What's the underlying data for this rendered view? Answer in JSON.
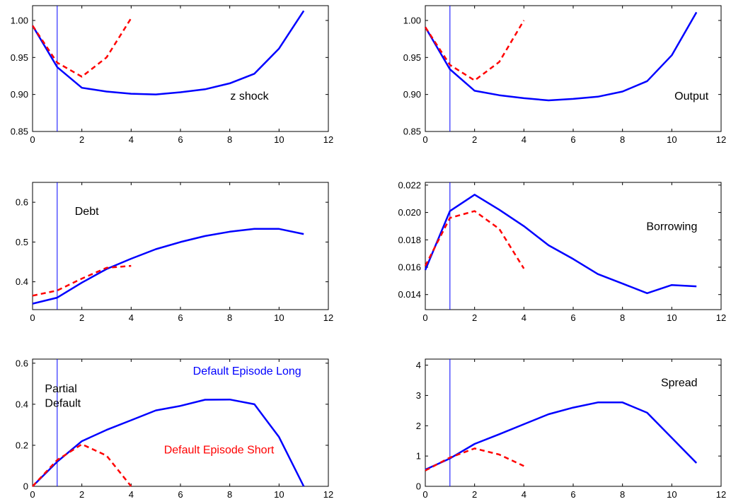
{
  "chart_data": [
    {
      "type": "line",
      "title": "",
      "xlabel": "",
      "ylabel": "",
      "annotations": [
        "z shock"
      ],
      "xlim": [
        0,
        12
      ],
      "ylim": [
        0.85,
        1.02
      ],
      "xticks": [
        0,
        2,
        4,
        6,
        8,
        10,
        12
      ],
      "yticks": [
        0.85,
        0.9,
        0.95,
        1.0
      ],
      "ytick_labels": [
        "0.85",
        "0.90",
        "0.95",
        "1.00"
      ],
      "marker_x": 1,
      "series": [
        {
          "color": "#0000ff",
          "style": "solid",
          "x": [
            0,
            1,
            2,
            3,
            4,
            5,
            6,
            7,
            8,
            9,
            10,
            11
          ],
          "values": [
            0.993,
            0.937,
            0.909,
            0.904,
            0.901,
            0.9,
            0.903,
            0.907,
            0.915,
            0.928,
            0.962,
            1.013
          ]
        },
        {
          "color": "#ff0000",
          "style": "dashed",
          "x": [
            0,
            1,
            2,
            3,
            4
          ],
          "values": [
            0.993,
            0.943,
            0.924,
            0.95,
            1.003
          ]
        }
      ]
    },
    {
      "type": "line",
      "title": "",
      "xlabel": "",
      "ylabel": "",
      "annotations": [
        "Output"
      ],
      "xlim": [
        0,
        12
      ],
      "ylim": [
        0.85,
        1.02
      ],
      "xticks": [
        0,
        2,
        4,
        6,
        8,
        10,
        12
      ],
      "yticks": [
        0.85,
        0.9,
        0.95,
        1.0
      ],
      "ytick_labels": [
        "0.85",
        "0.90",
        "0.95",
        "1.00"
      ],
      "marker_x": 1,
      "series": [
        {
          "color": "#0000ff",
          "style": "solid",
          "x": [
            0,
            1,
            2,
            3,
            4,
            5,
            6,
            7,
            8,
            9,
            10,
            11
          ],
          "values": [
            0.991,
            0.934,
            0.905,
            0.899,
            0.895,
            0.892,
            0.894,
            0.897,
            0.904,
            0.918,
            0.953,
            1.011
          ]
        },
        {
          "color": "#ff0000",
          "style": "dashed",
          "x": [
            0,
            1,
            2,
            3,
            4
          ],
          "values": [
            0.991,
            0.94,
            0.919,
            0.944,
            1.0
          ]
        }
      ]
    },
    {
      "type": "line",
      "title": "",
      "xlabel": "",
      "ylabel": "",
      "annotations": [
        "Debt"
      ],
      "xlim": [
        0,
        12
      ],
      "ylim": [
        0.33,
        0.65
      ],
      "xticks": [
        0,
        2,
        4,
        6,
        8,
        10,
        12
      ],
      "yticks": [
        0.4,
        0.5,
        0.6
      ],
      "ytick_labels": [
        "0.4",
        "0.5",
        "0.6"
      ],
      "marker_x": 1,
      "series": [
        {
          "color": "#0000ff",
          "style": "solid",
          "x": [
            0,
            1,
            2,
            3,
            4,
            5,
            6,
            7,
            8,
            9,
            10,
            11
          ],
          "values": [
            0.345,
            0.36,
            0.398,
            0.432,
            0.458,
            0.482,
            0.5,
            0.515,
            0.526,
            0.533,
            0.533,
            0.52
          ]
        },
        {
          "color": "#ff0000",
          "style": "dashed",
          "x": [
            0,
            1,
            2,
            3,
            4
          ],
          "values": [
            0.365,
            0.378,
            0.408,
            0.435,
            0.44
          ]
        }
      ]
    },
    {
      "type": "line",
      "title": "",
      "xlabel": "",
      "ylabel": "",
      "annotations": [
        "Borrowing"
      ],
      "xlim": [
        0,
        12
      ],
      "ylim": [
        0.0129,
        0.0222
      ],
      "xticks": [
        0,
        2,
        4,
        6,
        8,
        10,
        12
      ],
      "yticks": [
        0.014,
        0.016,
        0.018,
        0.02,
        0.022
      ],
      "ytick_labels": [
        "0.014",
        "0.016",
        "0.018",
        "0.020",
        "0.022"
      ],
      "marker_x": 1,
      "series": [
        {
          "color": "#0000ff",
          "style": "solid",
          "x": [
            0,
            1,
            2,
            3,
            4,
            5,
            6,
            7,
            8,
            9,
            10,
            11
          ],
          "values": [
            0.0158,
            0.0201,
            0.0213,
            0.0202,
            0.019,
            0.0176,
            0.0166,
            0.0155,
            0.0148,
            0.0141,
            0.0147,
            0.0146
          ]
        },
        {
          "color": "#ff0000",
          "style": "dashed",
          "x": [
            0,
            1,
            2,
            3,
            4
          ],
          "values": [
            0.0161,
            0.0196,
            0.0201,
            0.0188,
            0.0159
          ]
        }
      ]
    },
    {
      "type": "line",
      "title": "",
      "xlabel": "",
      "ylabel": "",
      "annotations": [
        "Partial",
        "Default"
      ],
      "legend_labels": [
        {
          "text": "Default Episode Long",
          "color": "#0000ff"
        },
        {
          "text": "Default Episode Short",
          "color": "#ff0000"
        }
      ],
      "xlim": [
        0,
        12
      ],
      "ylim": [
        0,
        0.62
      ],
      "xticks": [
        0,
        2,
        4,
        6,
        8,
        10,
        12
      ],
      "yticks": [
        0,
        0.2,
        0.4,
        0.6
      ],
      "ytick_labels": [
        "0",
        "0.2",
        "0.4",
        "0.6"
      ],
      "marker_x": 1,
      "series": [
        {
          "color": "#0000ff",
          "style": "solid",
          "x": [
            0,
            1,
            2,
            3,
            4,
            5,
            6,
            7,
            8,
            9,
            10,
            11
          ],
          "values": [
            0.0,
            0.12,
            0.22,
            0.275,
            0.322,
            0.37,
            0.392,
            0.422,
            0.423,
            0.4,
            0.24,
            0.0
          ]
        },
        {
          "color": "#ff0000",
          "style": "dashed",
          "x": [
            0,
            1,
            2,
            3,
            4
          ],
          "values": [
            0.0,
            0.128,
            0.205,
            0.15,
            0.0
          ]
        }
      ]
    },
    {
      "type": "line",
      "title": "",
      "xlabel": "",
      "ylabel": "",
      "annotations": [
        "Spread"
      ],
      "xlim": [
        0,
        12
      ],
      "ylim": [
        0,
        4.2
      ],
      "xticks": [
        0,
        2,
        4,
        6,
        8,
        10,
        12
      ],
      "yticks": [
        0,
        1,
        2,
        3,
        4
      ],
      "ytick_labels": [
        "0",
        "1",
        "2",
        "3",
        "4"
      ],
      "marker_x": 1,
      "series": [
        {
          "color": "#0000ff",
          "style": "solid",
          "x": [
            0,
            1,
            2,
            3,
            4,
            5,
            6,
            7,
            8,
            9,
            10,
            11
          ],
          "values": [
            0.55,
            0.92,
            1.4,
            1.72,
            2.05,
            2.38,
            2.6,
            2.77,
            2.77,
            2.43,
            1.6,
            0.77
          ]
        },
        {
          "color": "#ff0000",
          "style": "dashed",
          "x": [
            0,
            1,
            2,
            3,
            4
          ],
          "values": [
            0.52,
            0.95,
            1.25,
            1.05,
            0.67
          ]
        }
      ]
    }
  ]
}
